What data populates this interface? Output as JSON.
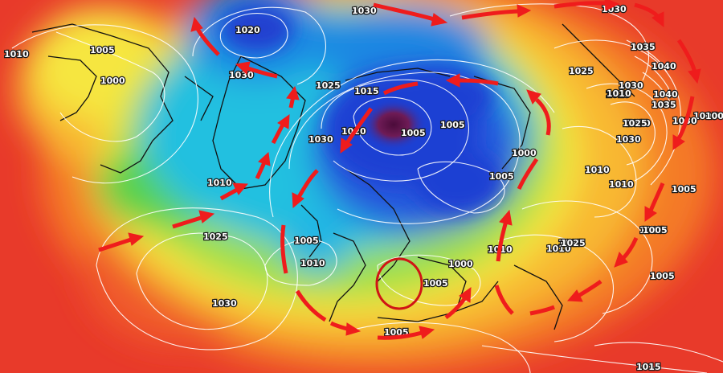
{
  "map": {
    "type": "mean sea level pressure analysis, northern hemisphere polar projection",
    "isobar_unit": "hPa",
    "pressure_labels": [
      "1030",
      "1020",
      "1005",
      "1000",
      "1030",
      "1025",
      "1015",
      "1005",
      "1005",
      "1030",
      "1020",
      "1030",
      "1010",
      "1000",
      "1005",
      "1010",
      "1005",
      "1000",
      "1005",
      "1025",
      "1030",
      "1010",
      "1025",
      "1010",
      "1010",
      "1005",
      "1005",
      "1010",
      "1030",
      "1035",
      "1040",
      "1025",
      "1030",
      "1025",
      "1040",
      "1035",
      "1030",
      "1025",
      "1005",
      "1030",
      "1010",
      "1010",
      "1005",
      "1005",
      "1015",
      "1005",
      "1005",
      "1025"
    ],
    "annotations": {
      "arrow_color": "#ef1c1c",
      "circle_color": "#d01515",
      "arrows": [
        {
          "name": "atlantic-jet",
          "segments": 3
        },
        {
          "name": "north-america-arc",
          "segments": 3
        },
        {
          "name": "greenland-arc",
          "segments": 4
        },
        {
          "name": "europe-south-arc",
          "segments": 5
        },
        {
          "name": "scandinavia-arc",
          "segments": 4
        },
        {
          "name": "arctic-top-arc",
          "segments": 3
        },
        {
          "name": "siberia-arc",
          "segments": 8
        }
      ],
      "highlight_circle": "ellipse over southern Scandinavia / Baltic"
    },
    "colors": {
      "very_high": "#e83a2a",
      "high": "#f47a28",
      "mid_high": "#f8b833",
      "neutral": "#f6e640",
      "mid": "#9cdf48",
      "low": "#22c0e0",
      "very_low": "#1c3fd3",
      "deep_low": "#6e1b56",
      "isobar": "#ffffff",
      "coastline": "#111111"
    }
  }
}
